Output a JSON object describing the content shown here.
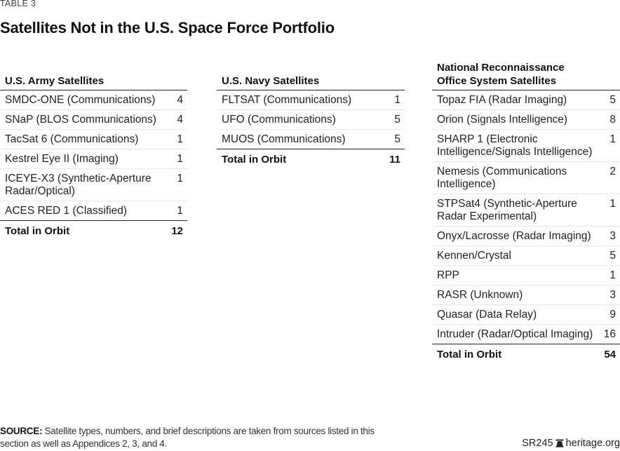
{
  "label": "TABLE 3",
  "title": "Satellites Not in the U.S. Space Force Portfolio",
  "tables": {
    "army": {
      "heading": "U.S. Army Satellites",
      "rows": [
        {
          "name": "SMDC-ONE (Communications)",
          "count": "4"
        },
        {
          "name": "SNaP (BLOS Communications)",
          "count": "4"
        },
        {
          "name": "TacSat 6 (Communications)",
          "count": "1"
        },
        {
          "name": "Kestrel Eye II (Imaging)",
          "count": "1"
        },
        {
          "name": "ICEYE-X3 (Synthetic-Aperture Radar/Optical)",
          "count": "1"
        },
        {
          "name": "ACES RED 1 (Classified)",
          "count": "1"
        }
      ],
      "total_label": "Total in Orbit",
      "total": "12"
    },
    "navy": {
      "heading": "U.S. Navy Satellites",
      "rows": [
        {
          "name": "FLTSAT (Communications)",
          "count": "1"
        },
        {
          "name": "UFO (Communications)",
          "count": "5"
        },
        {
          "name": "MUOS (Communications)",
          "count": "5"
        }
      ],
      "total_label": "Total in Orbit",
      "total": "11"
    },
    "nro": {
      "heading_line1": "National Reconnaissance",
      "heading_line2": "Office System Satellites",
      "rows": [
        {
          "name": "Topaz FIA (Radar Imaging)",
          "count": "5"
        },
        {
          "name": "Orion (Signals Intelligence)",
          "count": "8"
        },
        {
          "name": "SHARP 1 (Electronic Intelligence/Signals Intelligence)",
          "count": "1"
        },
        {
          "name": "Nemesis (Communications Intelligence)",
          "count": "2"
        },
        {
          "name": "STPSat4 (Synthetic-Aperture Radar Experimental)",
          "count": "1"
        },
        {
          "name": "Onyx/Lacrosse (Radar Imaging)",
          "count": "3"
        },
        {
          "name": "Kennen/Crystal",
          "count": "5"
        },
        {
          "name": "RPP",
          "count": "1"
        },
        {
          "name": "RASR (Unknown)",
          "count": "3"
        },
        {
          "name": "Quasar (Data Relay)",
          "count": "9"
        },
        {
          "name": "Intruder (Radar/Optical Imaging)",
          "count": "16"
        }
      ],
      "total_label": "Total in Orbit",
      "total": "54"
    }
  },
  "source": {
    "label": "SOURCE:",
    "text": " Satellite types, numbers, and brief descriptions are taken from sources listed in this section as well as Appendices 2, 3, and 4."
  },
  "footer": {
    "report_id": "SR245",
    "icon": "liberty-bell-icon",
    "site": "heritage.org"
  }
}
